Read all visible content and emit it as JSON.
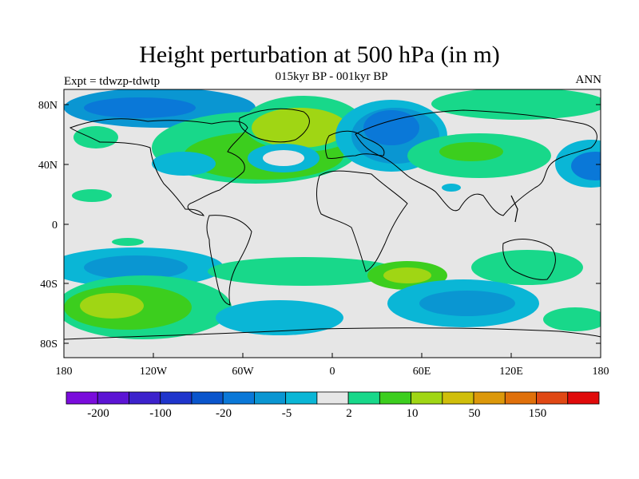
{
  "header": {
    "title": "Height perturbation at 500 hPa (in m)",
    "subtitle": "015kyr BP - 001kyr BP",
    "left_label": "Expt = tdwzp-tdwtp",
    "right_label": "ANN"
  },
  "map": {
    "lat_ticks": [
      "80N",
      "40N",
      "0",
      "40S",
      "80S"
    ],
    "lon_ticks": [
      "180",
      "120W",
      "60W",
      "0",
      "60E",
      "120E",
      "180"
    ],
    "background_color": "#e6e6e6"
  },
  "colorbar": {
    "colors": [
      "#7a0cdc",
      "#5c14d4",
      "#3c22cc",
      "#1f35cc",
      "#0a55cc",
      "#0a78d8",
      "#0a96d2",
      "#0ab6d6",
      "#e6e6e6",
      "#18d88a",
      "#3cce1e",
      "#a0d614",
      "#d0be0a",
      "#dc980a",
      "#e0700a",
      "#e04814",
      "#e00a0a"
    ],
    "labels": [
      "-200",
      "-100",
      "-20",
      "-5",
      "2",
      "10",
      "50",
      "150"
    ]
  },
  "colors": {
    "pos_light": "#18d88a",
    "pos_mid": "#3cce1e",
    "pos_strong": "#a0d614",
    "neg_light": "#0ab6d6",
    "neg_mid": "#0a96d2",
    "neg_strong": "#0a78d8",
    "neg_deep": "#0a55cc"
  }
}
